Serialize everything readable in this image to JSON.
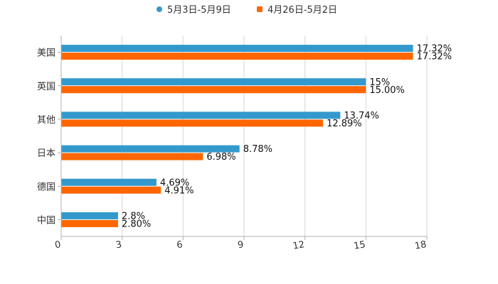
{
  "chart_data": {
    "type": "bar",
    "orientation": "horizontal",
    "categories": [
      "美国",
      "英国",
      "其他",
      "日本",
      "德国",
      "中国"
    ],
    "series": [
      {
        "name": "5月3日-5月9日",
        "color": "#3399cc",
        "values": [
          17.32,
          15,
          13.74,
          8.78,
          4.69,
          2.8
        ],
        "labels": [
          "17.32%",
          "15%",
          "13.74%",
          "8.78%",
          "4.69%",
          "2.8%"
        ]
      },
      {
        "name": "4月26日-5月2日",
        "color": "#ff6600",
        "values": [
          17.32,
          15.0,
          12.89,
          6.98,
          4.91,
          2.8
        ],
        "labels": [
          "17.32%",
          "15.00%",
          "12.89%",
          "6.98%",
          "4.91%",
          "2.80%"
        ]
      }
    ],
    "xlim": [
      0,
      18
    ],
    "xticks": [
      0,
      3,
      6,
      9,
      12,
      15,
      18
    ],
    "tick_labels": [
      "0",
      "3",
      "6",
      "9",
      "12",
      "15",
      "18"
    ],
    "grid": true,
    "legend_position": "top-center"
  }
}
